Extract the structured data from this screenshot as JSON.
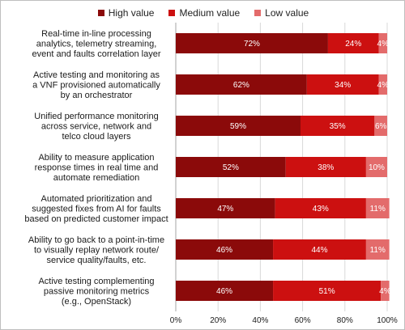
{
  "chart_data": {
    "type": "bar",
    "orientation": "horizontal",
    "stacked": true,
    "categories": [
      [
        "Real-time in-line processing",
        "analytics, telemetry streaming,",
        "event and faults correlation layer"
      ],
      [
        "Active testing and monitoring as",
        "a VNF provisioned automatically",
        "by an orchestrator"
      ],
      [
        "Unified performance monitoring",
        "across service, network and",
        "telco cloud layers"
      ],
      [
        "Ability to measure application",
        "response times in real time and",
        "automate remediation"
      ],
      [
        "Automated prioritization and",
        "suggested fixes from AI for faults",
        "based on predicted customer impact"
      ],
      [
        "Ability to go back to a point-in-time",
        "to visually replay network route/",
        "service quality/faults, etc."
      ],
      [
        "Active testing complementing",
        "passive monitoring metrics",
        "(e.g., OpenStack)"
      ]
    ],
    "series": [
      {
        "name": "High value",
        "color": "#8b0a0a",
        "values": [
          72,
          62,
          59,
          52,
          47,
          46,
          46
        ]
      },
      {
        "name": "Medium value",
        "color": "#cc1010",
        "values": [
          24,
          34,
          35,
          38,
          43,
          44,
          51
        ]
      },
      {
        "name": "Low value",
        "color": "#e36b6b",
        "values": [
          4,
          4,
          6,
          10,
          11,
          11,
          4
        ]
      }
    ],
    "value_labels": [
      [
        "72%",
        "24%",
        "4%"
      ],
      [
        "62%",
        "34%",
        "4%"
      ],
      [
        "59%",
        "35%",
        "6%"
      ],
      [
        "52%",
        "38%",
        "10%"
      ],
      [
        "47%",
        "43%",
        "11%"
      ],
      [
        "46%",
        "44%",
        "11%"
      ],
      [
        "46%",
        "51%",
        "4%"
      ]
    ],
    "xlim": [
      0,
      100
    ],
    "xticks": [
      "0%",
      "20%",
      "40%",
      "60%",
      "80%",
      "100%"
    ],
    "legend_position": "top",
    "grid": true
  }
}
